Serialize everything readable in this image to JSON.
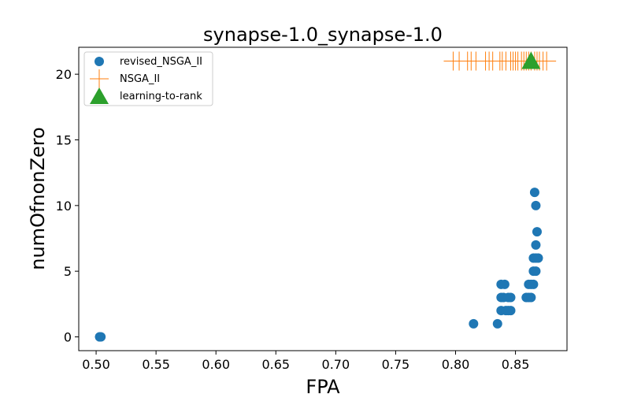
{
  "chart_data": {
    "type": "scatter",
    "title": "synapse-1.0_synapse-1.0",
    "xlabel": "FPA",
    "ylabel": "numOfnonZero",
    "xlim": [
      0.4855,
      0.893
    ],
    "ylim": [
      -1.05,
      22.05
    ],
    "xticks": [
      0.5,
      0.55,
      0.6,
      0.65,
      0.7,
      0.75,
      0.8,
      0.85
    ],
    "xtick_labels": [
      "0.50",
      "0.55",
      "0.60",
      "0.65",
      "0.70",
      "0.75",
      "0.80",
      "0.85"
    ],
    "yticks": [
      0,
      5,
      10,
      15,
      20
    ],
    "ytick_labels": [
      "0",
      "5",
      "10",
      "15",
      "20"
    ],
    "grid": false,
    "legend_position": "top-left",
    "series": [
      {
        "name": "revised_NSGA_II",
        "marker": "circle",
        "color": "#1f77b4",
        "points": [
          [
            0.503,
            0
          ],
          [
            0.504,
            0
          ],
          [
            0.503,
            0
          ],
          [
            0.815,
            1
          ],
          [
            0.835,
            1
          ],
          [
            0.838,
            2
          ],
          [
            0.842,
            2
          ],
          [
            0.844,
            2
          ],
          [
            0.846,
            2
          ],
          [
            0.838,
            3
          ],
          [
            0.84,
            3
          ],
          [
            0.844,
            3
          ],
          [
            0.846,
            3
          ],
          [
            0.859,
            3
          ],
          [
            0.861,
            3
          ],
          [
            0.863,
            3
          ],
          [
            0.838,
            4
          ],
          [
            0.841,
            4
          ],
          [
            0.861,
            4
          ],
          [
            0.863,
            4
          ],
          [
            0.865,
            4
          ],
          [
            0.865,
            5
          ],
          [
            0.867,
            5
          ],
          [
            0.865,
            6
          ],
          [
            0.867,
            6
          ],
          [
            0.869,
            6
          ],
          [
            0.867,
            7
          ],
          [
            0.868,
            8
          ],
          [
            0.867,
            10
          ],
          [
            0.866,
            11
          ]
        ]
      },
      {
        "name": "NSGA_II",
        "marker": "plus",
        "color": "#ff7f0e",
        "points": [
          [
            0.798,
            21
          ],
          [
            0.803,
            21
          ],
          [
            0.81,
            21
          ],
          [
            0.813,
            21
          ],
          [
            0.817,
            21
          ],
          [
            0.825,
            21
          ],
          [
            0.828,
            21
          ],
          [
            0.831,
            21
          ],
          [
            0.837,
            21
          ],
          [
            0.839,
            21
          ],
          [
            0.842,
            21
          ],
          [
            0.846,
            21
          ],
          [
            0.848,
            21
          ],
          [
            0.85,
            21
          ],
          [
            0.852,
            21
          ],
          [
            0.855,
            21
          ],
          [
            0.857,
            21
          ],
          [
            0.859,
            21
          ],
          [
            0.861,
            21
          ],
          [
            0.863,
            21
          ],
          [
            0.866,
            21
          ],
          [
            0.868,
            21
          ],
          [
            0.87,
            21
          ],
          [
            0.873,
            21
          ],
          [
            0.876,
            21
          ]
        ]
      },
      {
        "name": "learning-to-rank",
        "marker": "triangle",
        "color": "#2ca02c",
        "points": [
          [
            0.863,
            21
          ]
        ]
      }
    ]
  }
}
